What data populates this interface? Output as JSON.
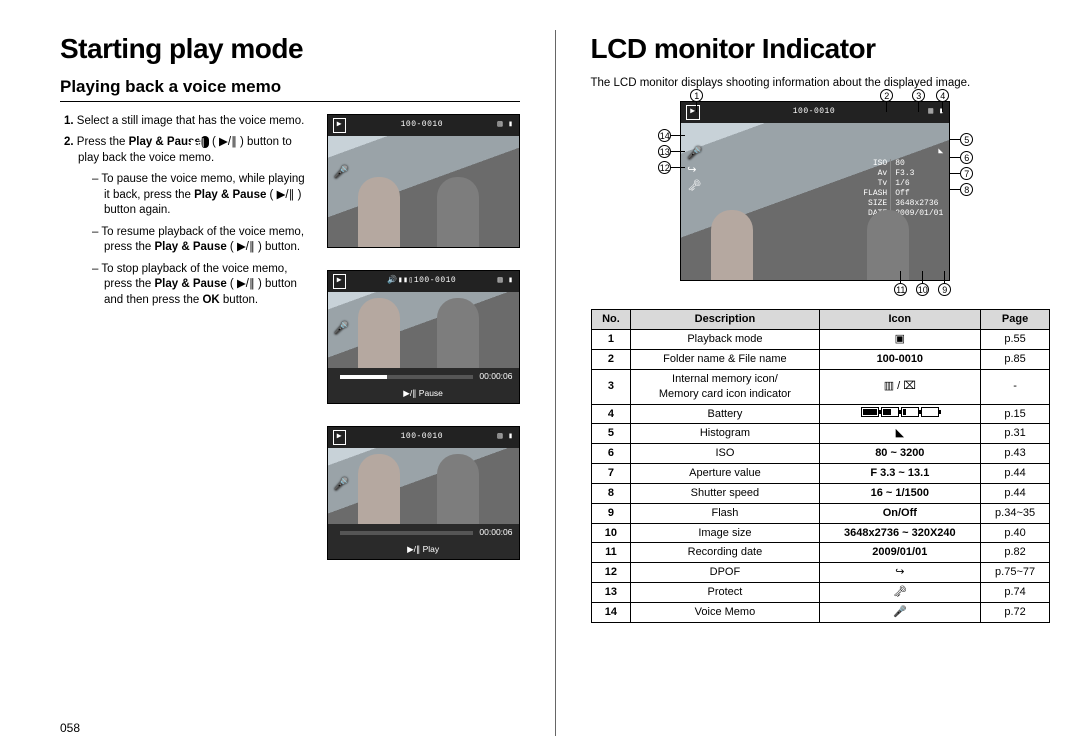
{
  "page_number": "058",
  "left": {
    "title": "Starting play mode",
    "subtitle": "Playing back a voice memo",
    "step1_num": "1.",
    "step1": "Select a still image that has the voice memo.",
    "step2_num": "2.",
    "step2_a": "Press the ",
    "step2_b": "Play & Pause",
    "step2_c": " ( ▶/∥ ) button to play back the voice memo.",
    "sub1_a": "To pause the voice memo, while playing it back, press the ",
    "sub1_b": "Play & Pause",
    "sub1_c": " ( ▶/∥ ) button again.",
    "sub2_a": "To resume playback of the voice memo, press the ",
    "sub2_b": "Play & Pause",
    "sub2_c": " ( ▶/∥ ) button.",
    "sub3_a": "To stop playback of the voice memo, press the ",
    "sub3_b": "Play & Pause",
    "sub3_c": " ( ▶/∥ ) button and then press the ",
    "sub3_d": "OK",
    "sub3_e": " button.",
    "lcd": {
      "file_label": "100-0010",
      "time": "00:00:06",
      "pause_label": "▶/∥ Pause",
      "play_label": "▶/∥ Play"
    }
  },
  "right": {
    "title": "LCD monitor Indicator",
    "intro": "The LCD monitor displays shooting information about the displayed image.",
    "annot": {
      "file_label": "100-0010",
      "info": {
        "iso_l": "ISO",
        "iso_v": "80",
        "av_l": "Av",
        "av_v": "F3.3",
        "tv_l": "Tv",
        "tv_v": "1/6",
        "fl_l": "FLASH",
        "fl_v": "Off",
        "sz_l": "SIZE",
        "sz_v": "3648x2736",
        "dt_l": "DATE",
        "dt_v": "2009/01/01"
      }
    },
    "table": {
      "h_no": "No.",
      "h_desc": "Description",
      "h_icon": "Icon",
      "h_page": "Page",
      "rows": [
        {
          "no": "1",
          "desc": "Playback mode",
          "icon": "▣",
          "page": "p.55"
        },
        {
          "no": "2",
          "desc": "Folder name & File name",
          "icon": "100-0010",
          "page": "p.85",
          "bold": true
        },
        {
          "no": "3",
          "desc": "Internal memory icon/\nMemory card icon indicator",
          "icon": "▥ / ⌧",
          "page": "-"
        },
        {
          "no": "4",
          "desc": "Battery",
          "icon": "BATT",
          "page": "p.15"
        },
        {
          "no": "5",
          "desc": "Histogram",
          "icon": "◣",
          "page": "p.31"
        },
        {
          "no": "6",
          "desc": "ISO",
          "icon": "80 ~ 3200",
          "page": "p.43",
          "bold": true
        },
        {
          "no": "7",
          "desc": "Aperture value",
          "icon": "F 3.3 ~ 13.1",
          "page": "p.44",
          "bold": true
        },
        {
          "no": "8",
          "desc": "Shutter speed",
          "icon": "16 ~ 1/1500",
          "page": "p.44",
          "bold": true
        },
        {
          "no": "9",
          "desc": "Flash",
          "icon": "On/Off",
          "page": "p.34~35",
          "bold": true
        },
        {
          "no": "10",
          "desc": "Image size",
          "icon": "3648x2736 ~ 320X240",
          "page": "p.40",
          "bold": true
        },
        {
          "no": "11",
          "desc": "Recording date",
          "icon": "2009/01/01",
          "page": "p.82",
          "bold": true
        },
        {
          "no": "12",
          "desc": "DPOF",
          "icon": "↪",
          "page": "p.75~77"
        },
        {
          "no": "13",
          "desc": "Protect",
          "icon": "🗝",
          "page": "p.74"
        },
        {
          "no": "14",
          "desc": "Voice Memo",
          "icon": "🎤",
          "page": "p.72"
        }
      ]
    }
  }
}
